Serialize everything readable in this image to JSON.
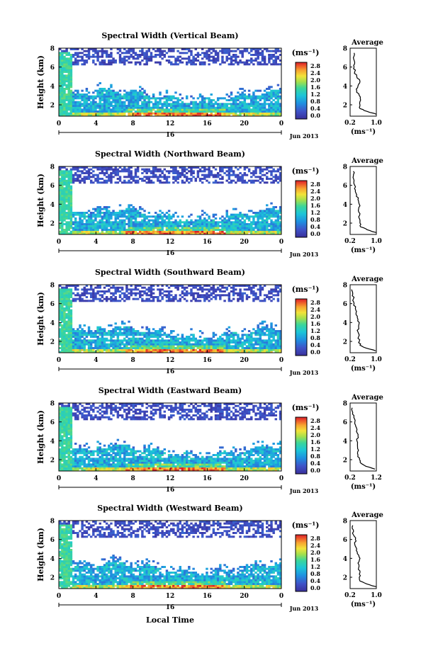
{
  "figure": {
    "xaxis_title": "Local Time",
    "date_label": "Jun 2013",
    "day_label": "16",
    "x_ticks": [
      "0",
      "4",
      "8",
      "12",
      "16",
      "20",
      "0"
    ],
    "y_ticks": [
      "2",
      "4",
      "6",
      "8"
    ],
    "y_label": "Height (km)",
    "cbar_unit": "(ms⁻¹)",
    "cbar_ticks": [
      "0.0",
      "0.4",
      "0.8",
      "1.2",
      "1.6",
      "2.0",
      "2.4",
      "2.8"
    ],
    "avg_title": "Average",
    "avg_unit": "(ms⁻¹)"
  },
  "chart_data": [
    {
      "type": "heatmap",
      "title": "Spectral Width (Vertical Beam)",
      "xlabel": "Local Time",
      "ylabel": "Height (km)",
      "xlim": [
        0,
        24
      ],
      "ylim": [
        0.8,
        8
      ],
      "colorbar": {
        "label": "(ms⁻¹)",
        "range": [
          0.0,
          2.8
        ]
      },
      "average_profile": {
        "title": "Average",
        "xlabel": "(ms⁻¹)",
        "xlim": [
          0.2,
          1.0
        ],
        "x_ticks": [
          "0.2",
          "1.0"
        ],
        "height_km": [
          1.0,
          1.3,
          1.6,
          2.0,
          2.5,
          3.0,
          3.5,
          4.0,
          4.5,
          5.0,
          5.5,
          6.0,
          6.5,
          7.0,
          7.5
        ],
        "width_ms": [
          1.0,
          0.72,
          0.5,
          0.5,
          0.52,
          0.48,
          0.4,
          0.44,
          0.5,
          0.4,
          0.34,
          0.32,
          0.34,
          0.3,
          0.32
        ]
      }
    },
    {
      "type": "heatmap",
      "title": "Spectral Width (Northward Beam)",
      "xlabel": "Local Time",
      "ylabel": "Height (km)",
      "xlim": [
        0,
        24
      ],
      "ylim": [
        0.8,
        8
      ],
      "colorbar": {
        "label": "(ms⁻¹)",
        "range": [
          0.0,
          2.8
        ]
      },
      "average_profile": {
        "title": "Average",
        "xlabel": "(ms⁻¹)",
        "xlim": [
          0.2,
          1.0
        ],
        "x_ticks": [
          "0.2",
          "1.0"
        ],
        "height_km": [
          1.0,
          1.3,
          1.6,
          2.0,
          2.5,
          3.0,
          3.5,
          4.0,
          4.5,
          5.0,
          5.5,
          6.0,
          6.5,
          7.0,
          7.5
        ],
        "width_ms": [
          1.0,
          0.72,
          0.52,
          0.5,
          0.48,
          0.5,
          0.46,
          0.48,
          0.44,
          0.4,
          0.36,
          0.34,
          0.32,
          0.3,
          0.3
        ]
      }
    },
    {
      "type": "heatmap",
      "title": "Spectral Width (Southward Beam)",
      "xlabel": "Local Time",
      "ylabel": "Height (km)",
      "xlim": [
        0,
        24
      ],
      "ylim": [
        0.8,
        8
      ],
      "colorbar": {
        "label": "(ms⁻¹)",
        "range": [
          0.0,
          2.8
        ]
      },
      "average_profile": {
        "title": "Average",
        "xlabel": "(ms⁻¹)",
        "xlim": [
          0.2,
          1.0
        ],
        "x_ticks": [
          "0.2",
          "1.0"
        ],
        "height_km": [
          1.0,
          1.3,
          1.6,
          2.0,
          2.5,
          3.0,
          3.5,
          4.0,
          4.5,
          5.0,
          5.5,
          6.0,
          6.5,
          7.0,
          7.5
        ],
        "width_ms": [
          0.98,
          0.68,
          0.5,
          0.48,
          0.46,
          0.44,
          0.46,
          0.48,
          0.42,
          0.38,
          0.36,
          0.32,
          0.3,
          0.28,
          0.24
        ]
      }
    },
    {
      "type": "heatmap",
      "title": "Spectral Width (Eastward Beam)",
      "xlabel": "Local Time",
      "ylabel": "Height (km)",
      "xlim": [
        0,
        24
      ],
      "ylim": [
        0.8,
        8
      ],
      "colorbar": {
        "label": "(ms⁻¹)",
        "range": [
          0.0,
          2.8
        ]
      },
      "average_profile": {
        "title": "Average",
        "xlabel": "(ms⁻¹)",
        "xlim": [
          0.2,
          1.2
        ],
        "x_ticks": [
          "0.2",
          "1.2"
        ],
        "height_km": [
          1.0,
          1.3,
          1.6,
          2.0,
          2.5,
          3.0,
          3.5,
          4.0,
          4.5,
          5.0,
          5.5,
          6.0,
          6.5,
          7.0,
          7.5
        ],
        "width_ms": [
          1.15,
          0.8,
          0.62,
          0.56,
          0.5,
          0.52,
          0.48,
          0.46,
          0.5,
          0.44,
          0.42,
          0.38,
          0.34,
          0.3,
          0.28
        ]
      }
    },
    {
      "type": "heatmap",
      "title": "Spectral Width (Westward Beam)",
      "xlabel": "Local Time",
      "ylabel": "Height (km)",
      "xlim": [
        0,
        24
      ],
      "ylim": [
        0.8,
        8
      ],
      "colorbar": {
        "label": "(ms⁻¹)",
        "range": [
          0.0,
          2.8
        ]
      },
      "average_profile": {
        "title": "Average",
        "xlabel": "(ms⁻¹)",
        "xlim": [
          0.2,
          1.0
        ],
        "x_ticks": [
          "0.2",
          "1.0"
        ],
        "height_km": [
          1.0,
          1.3,
          1.6,
          2.0,
          2.5,
          3.0,
          3.5,
          4.0,
          4.5,
          5.0,
          5.5,
          6.0,
          6.5,
          7.0,
          7.5
        ],
        "width_ms": [
          1.0,
          0.7,
          0.5,
          0.48,
          0.5,
          0.46,
          0.44,
          0.5,
          0.42,
          0.4,
          0.34,
          0.36,
          0.3,
          0.3,
          0.28
        ]
      }
    }
  ]
}
